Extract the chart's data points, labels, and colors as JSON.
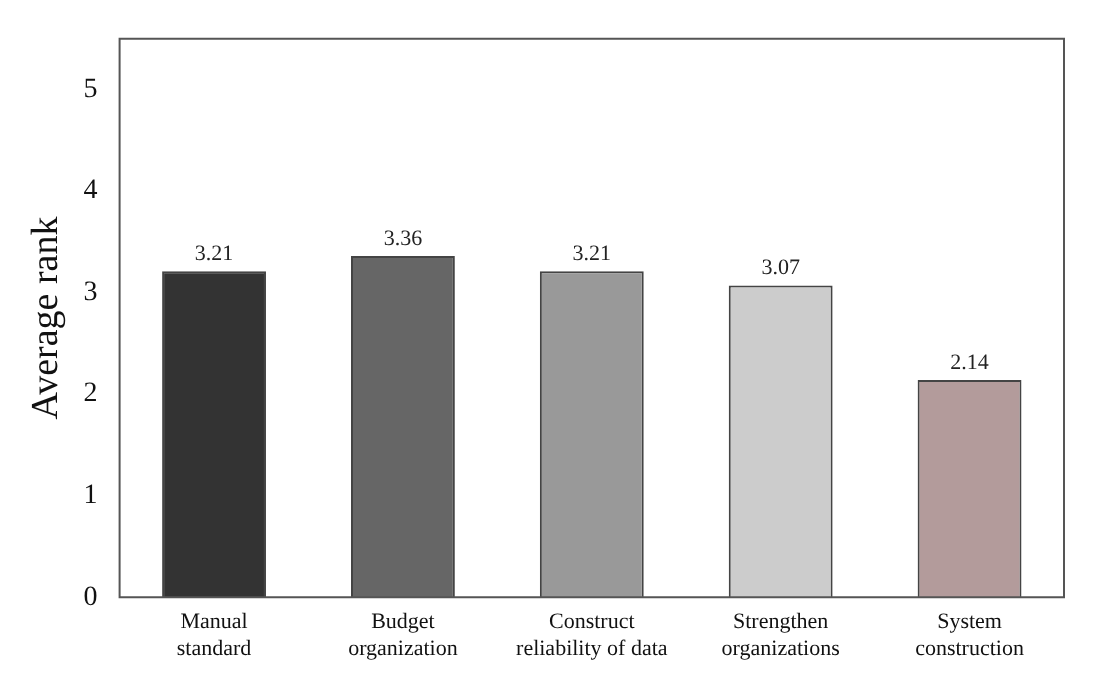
{
  "chart_data": {
    "type": "bar",
    "ylabel": "Average rank",
    "categories": [
      "Manual standard",
      "Budget organization",
      "Construct reliability of data",
      "Strengthen organizations",
      "System construction"
    ],
    "values": [
      3.21,
      3.36,
      3.21,
      3.07,
      2.14
    ],
    "colors": [
      "#333333",
      "#666666",
      "#999999",
      "#cccccc",
      "#b39b9b"
    ],
    "ylim": [
      0,
      5.5
    ],
    "yticks": [
      0,
      1,
      2,
      3,
      4,
      5
    ],
    "grid": false,
    "legend": false,
    "data_labels": true
  }
}
